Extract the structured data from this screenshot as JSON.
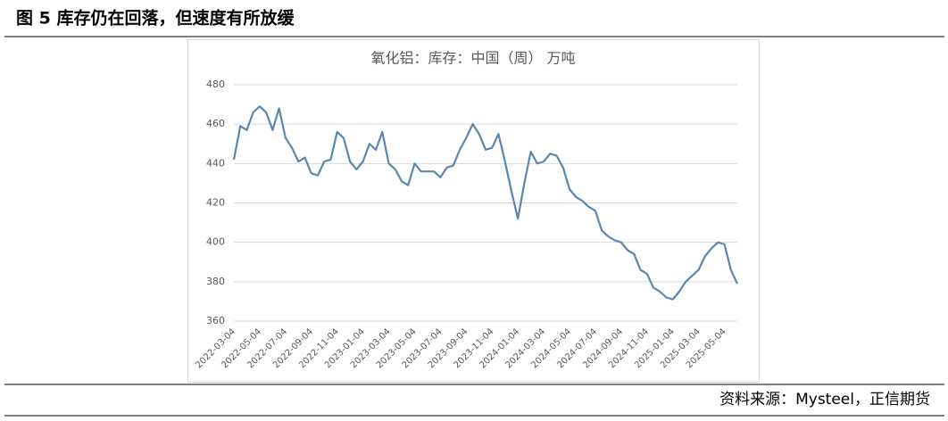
{
  "header": {
    "title": "图 5 库存仍在回落，但速度有所放缓"
  },
  "source": "资料来源：Mysteel，正信期货",
  "chart_data": {
    "type": "line",
    "title": "氧化铝：库存：中国（周） 万吨",
    "categories": [
      "2022-03-04",
      null,
      null,
      null,
      "2022-05-04",
      null,
      null,
      null,
      "2022-07-04",
      null,
      null,
      null,
      "2022-09-04",
      null,
      null,
      null,
      "2022-11-04",
      null,
      null,
      null,
      "2023-01-04",
      null,
      null,
      null,
      "2023-03-04",
      null,
      null,
      null,
      "2023-05-04",
      null,
      null,
      null,
      "2023-07-04",
      null,
      null,
      null,
      "2023-09-04",
      null,
      null,
      null,
      "2023-11-04",
      null,
      null,
      null,
      "2024-01-04",
      null,
      null,
      null,
      "2024-03-04",
      null,
      null,
      null,
      "2024-05-04",
      null,
      null,
      null,
      "2024-07-04",
      null,
      null,
      null,
      "2024-09-04",
      null,
      null,
      null,
      "2024-11-04",
      null,
      null,
      null,
      "2025-01-04",
      null,
      null,
      null,
      "2025-03-04",
      null,
      null,
      null,
      "2025-05-04",
      null,
      null
    ],
    "values": [
      442,
      459,
      457,
      466,
      469,
      466,
      457,
      468,
      453,
      448,
      441,
      443,
      435,
      434,
      441,
      442,
      456,
      453,
      441,
      437,
      441,
      450,
      447,
      456,
      440,
      437,
      431,
      429,
      440,
      436,
      436,
      436,
      433,
      438,
      439,
      447,
      453,
      460,
      455,
      447,
      448,
      455,
      441,
      426,
      412,
      430,
      446,
      440,
      441,
      445,
      444,
      438,
      427,
      423,
      421,
      418,
      416,
      406,
      403,
      401,
      400,
      396,
      394,
      386,
      384,
      377,
      375,
      372,
      371,
      375,
      380,
      383,
      386,
      393,
      397,
      400,
      399,
      386,
      379
    ],
    "color": "#5a86b0",
    "ylim": [
      360,
      480
    ],
    "yticks": [
      360,
      380,
      400,
      420,
      440,
      460,
      480
    ],
    "grid": true
  }
}
